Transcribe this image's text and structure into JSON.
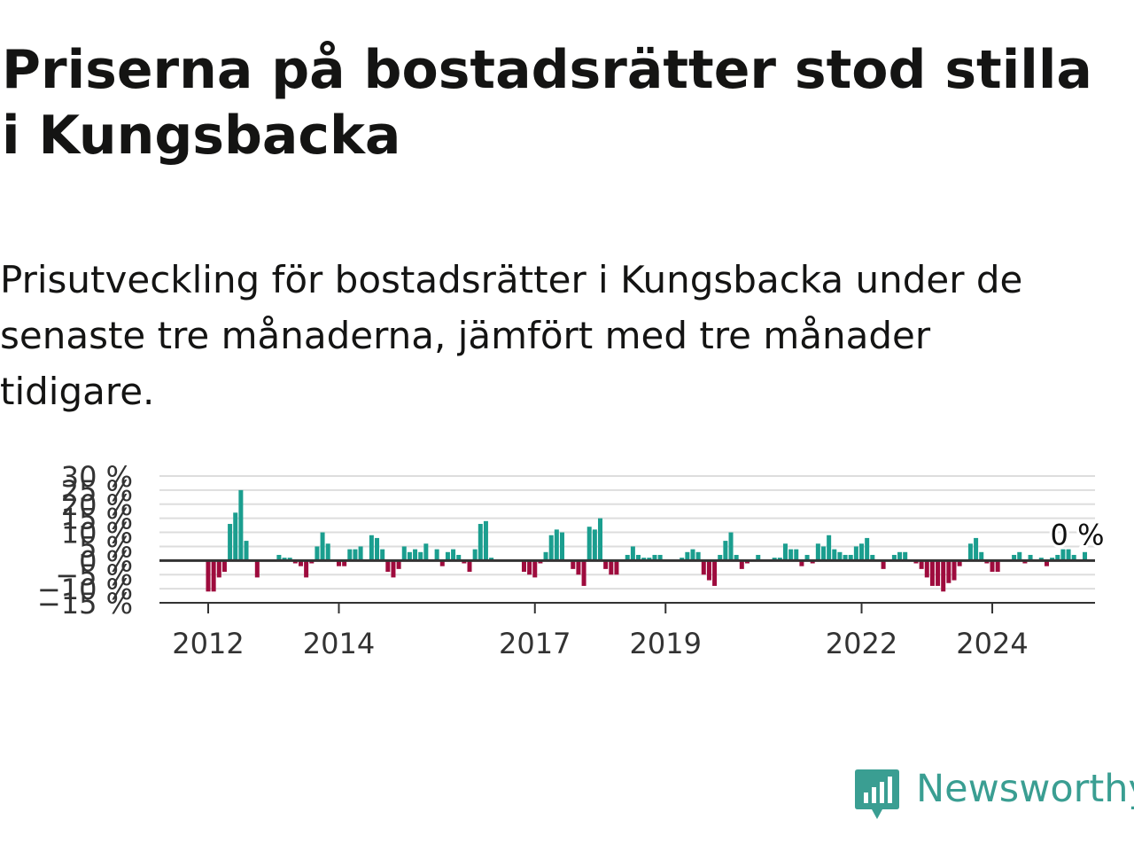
{
  "title": "Priserna på bostadsrätter stod stilla i Kungsbacka",
  "subtitle": "Prisutveckling för bostadsrätter i Kungsbacka under de senaste tre månaderna, jämfört med tre månader tidigare.",
  "logo_text": "Newsworthy",
  "colors": {
    "positive": "#1b9e8f",
    "negative": "#9e0b3d",
    "grid": "#dddddd",
    "axis": "#333333",
    "text": "#141413",
    "brand": "#3a9e92"
  },
  "chart_data": {
    "type": "bar",
    "x_start": "2012-01",
    "x_interval": "month",
    "x_ticks": [
      "2012",
      "2014",
      "2017",
      "2019",
      "2022",
      "2024"
    ],
    "y_ticks": [
      "30 %",
      "25 %",
      "20 %",
      "15 %",
      "10 %",
      "5 %",
      "0 %",
      "−5 %",
      "−10 %",
      "−15 %"
    ],
    "ylim": [
      -15,
      30
    ],
    "grid": true,
    "last_value_label": "0 %",
    "values": [
      -11,
      -11,
      -6,
      -4,
      13,
      17,
      25,
      7,
      0,
      -6,
      0,
      0,
      0,
      2,
      1,
      1,
      -1,
      -2,
      -6,
      -1,
      5,
      10,
      6,
      0,
      -2,
      -2,
      4,
      4,
      5,
      0,
      9,
      8,
      4,
      -4,
      -6,
      -3,
      5,
      3,
      4,
      3,
      6,
      0,
      4,
      -2,
      3,
      4,
      2,
      -1,
      -4,
      4,
      13,
      14,
      1,
      0,
      0,
      0,
      0,
      0,
      -4,
      -5,
      -6,
      -1,
      3,
      9,
      11,
      10,
      0,
      -3,
      -5,
      -9,
      12,
      11,
      15,
      -3,
      -5,
      -5,
      0,
      2,
      5,
      2,
      1,
      1,
      2,
      2,
      0,
      0,
      0,
      1,
      3,
      4,
      3,
      -5,
      -7,
      -9,
      2,
      7,
      10,
      2,
      -3,
      -1,
      0,
      2,
      0,
      0,
      1,
      1,
      6,
      4,
      4,
      -2,
      2,
      -1,
      6,
      5,
      9,
      4,
      3,
      2,
      2,
      5,
      6,
      8,
      2,
      0,
      -3,
      0,
      2,
      3,
      3,
      0,
      -1,
      -3,
      -6,
      -9,
      -9,
      -11,
      -8,
      -7,
      -2,
      0,
      6,
      8,
      3,
      -1,
      -4,
      -4,
      0,
      0,
      2,
      3,
      -1,
      2,
      0,
      1,
      -2,
      1,
      2,
      4,
      4,
      2,
      0,
      3,
      0
    ]
  }
}
